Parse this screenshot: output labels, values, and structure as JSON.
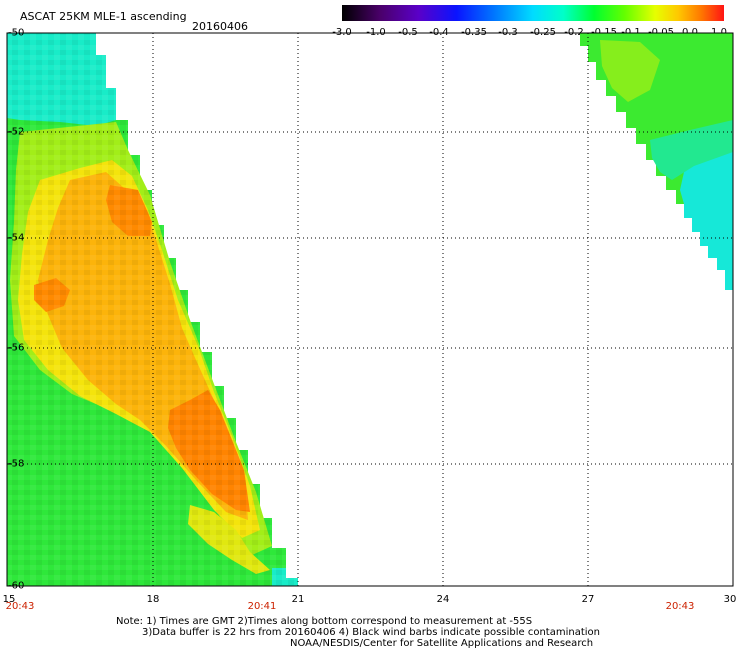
{
  "header": {
    "title": "ASCAT 25KM MLE-1 ascending",
    "date": "20160406"
  },
  "colorbar": {
    "labels": [
      "-3.0",
      "-1.0",
      "-0.5",
      "-0.4",
      "-0.35",
      "-0.3",
      "-0.25",
      "-0.2",
      "-0.15",
      "-0.1",
      "-0.05",
      "0.0",
      "1.0"
    ],
    "colors": [
      "#000000",
      "#5a00a0",
      "#1e1eff",
      "#0064ff",
      "#00b4ff",
      "#00ffff",
      "#00ff96",
      "#00ff00",
      "#96ff00",
      "#ffff00",
      "#ffb400",
      "#ff7800",
      "#ff1e1e"
    ]
  },
  "map": {
    "lat_labels": [
      "-50",
      "-52",
      "-54",
      "-56",
      "-58",
      "-60"
    ],
    "lon_labels": [
      "15",
      "18",
      "21",
      "24",
      "27",
      "30"
    ],
    "time_labels": [
      "20:43",
      "20:41",
      "20:43"
    ],
    "grid": "dotted"
  },
  "notes": {
    "line1": "Note: 1) Times are GMT 2)Times along bottom correspond to measurement at -55S",
    "line2": "3)Data buffer is 22 hrs from 20160406 4) Black wind barbs indicate possible contamination",
    "line3": "NOAA/NESDIS/Center for Satellite Applications and Research"
  }
}
